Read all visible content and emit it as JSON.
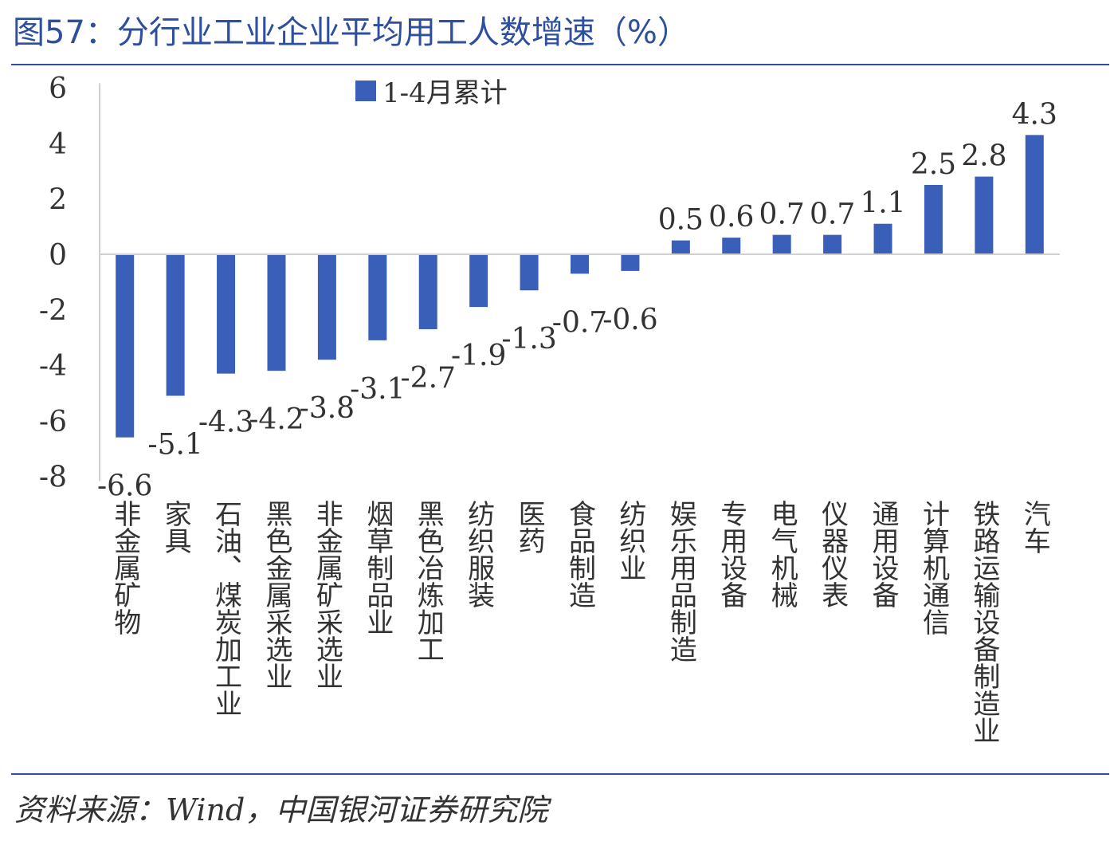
{
  "header": {
    "title": "图57：分行业工业企业平均用工人数增速（%）"
  },
  "footer": {
    "source": "资料来源：Wind，中国银河证券研究院"
  },
  "chart_data": {
    "type": "bar",
    "title": "图57：分行业工业企业平均用工人数增速（%）",
    "xlabel": "",
    "ylabel": "",
    "ylim": [
      -8,
      6
    ],
    "yticks": [
      6,
      4,
      2,
      0,
      -2,
      -4,
      -6,
      -8
    ],
    "grid": false,
    "legend_position": "top-center",
    "colors": {
      "bar": "#3a5fb8",
      "axis": "#d0d0d0",
      "accent": "#2d4f9e"
    },
    "categories": [
      "非金属矿物",
      "家具",
      "石油、煤炭加工业",
      "黑色金属采选业",
      "非金属矿采选业",
      "烟草制品业",
      "黑色冶炼加工",
      "纺织服装",
      "医药",
      "食品制造",
      "纺织业",
      "娱乐用品制造",
      "专用设备",
      "电气机械",
      "仪器仪表",
      "通用设备",
      "计算机通信",
      "铁路运输设备制造业",
      "汽车"
    ],
    "series": [
      {
        "name": "1-4月累计",
        "values": [
          -6.6,
          -5.1,
          -4.3,
          -4.2,
          -3.8,
          -3.1,
          -2.7,
          -1.9,
          -1.3,
          -0.7,
          -0.6,
          0.5,
          0.6,
          0.7,
          0.7,
          1.1,
          2.5,
          2.8,
          4.3
        ]
      }
    ]
  }
}
